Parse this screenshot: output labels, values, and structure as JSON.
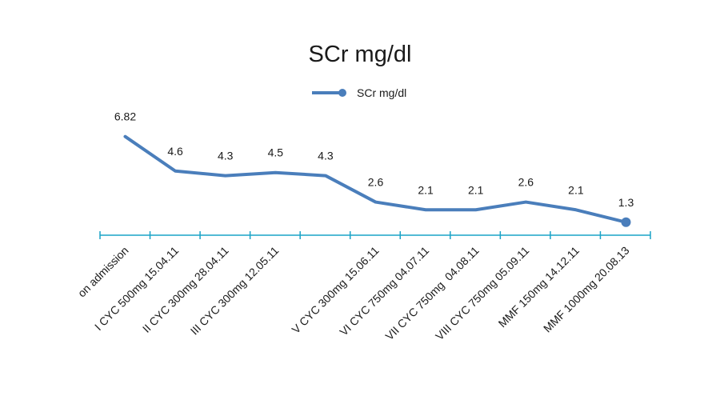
{
  "chart_data": {
    "type": "line",
    "title": "SCr mg/dl",
    "xlabel": "",
    "ylabel": "",
    "legend_position": "top-center",
    "grid": false,
    "categories": [
      "on admission",
      "I CYC 500mg 15.04.11",
      "II CYC 300mg 28.04.11",
      "III CYC 300mg 12.05.11",
      "",
      "V CYC 300mg 15.06.11",
      "VI CYC 750mg 04.07.11",
      "VII CYC 750mg  04.08.11",
      "VIII CYC 750mg 05.09.11",
      "MMF 150mg 14.12.11",
      "MMF 1000mg 20.08.13"
    ],
    "series": [
      {
        "name": "SCr mg/dl",
        "values": [
          6.82,
          4.6,
          4.3,
          4.5,
          4.3,
          2.6,
          2.1,
          2.1,
          2.6,
          2.1,
          1.3
        ],
        "labels": [
          "6.82",
          "4.6",
          "4.3",
          "4.5",
          "4.3",
          "2.6",
          "2.1",
          "2.1",
          "2.6",
          "2.1",
          "1.3"
        ]
      }
    ],
    "colors": {
      "line": "#4a7ebb",
      "axis": "#1aa3c7",
      "text": "#1a1a1a"
    }
  }
}
